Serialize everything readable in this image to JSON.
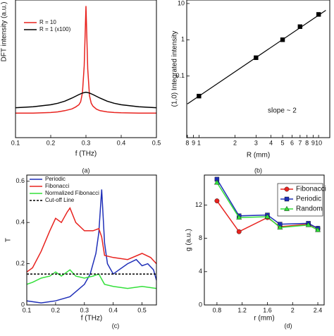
{
  "chart_data": [
    {
      "type": "line",
      "ylabel": "DFT intensity (a.u.)",
      "xlabel": "f (THz)",
      "label": "(a)",
      "xlim": [
        0.1,
        0.5
      ],
      "xticks": [
        0.1,
        0.2,
        0.3,
        0.4,
        0.5
      ],
      "ylim": [
        0,
        4.6
      ],
      "legend": "upper left",
      "series": [
        {
          "name": "R = 10",
          "color": "#e8231f",
          "x": [
            0.1,
            0.15,
            0.2,
            0.22,
            0.24,
            0.26,
            0.27,
            0.28,
            0.285,
            0.29,
            0.295,
            0.3,
            0.305,
            0.31,
            0.315,
            0.32,
            0.33,
            0.34,
            0.36,
            0.38,
            0.4,
            0.45,
            0.5
          ],
          "values": [
            0.82,
            0.82,
            0.84,
            0.86,
            0.9,
            0.96,
            1.02,
            1.1,
            1.2,
            1.5,
            2.4,
            4.4,
            2.3,
            1.4,
            1.15,
            1.05,
            0.95,
            0.9,
            0.86,
            0.84,
            0.83,
            0.82,
            0.82
          ]
        },
        {
          "name": "R = 1 (x100)",
          "color": "#000000",
          "x": [
            0.1,
            0.15,
            0.2,
            0.22,
            0.24,
            0.26,
            0.27,
            0.28,
            0.29,
            0.3,
            0.31,
            0.32,
            0.33,
            0.34,
            0.36,
            0.38,
            0.4,
            0.45,
            0.5
          ],
          "values": [
            1.0,
            1.03,
            1.1,
            1.15,
            1.22,
            1.32,
            1.38,
            1.44,
            1.49,
            1.52,
            1.49,
            1.44,
            1.38,
            1.32,
            1.22,
            1.15,
            1.1,
            1.03,
            1.0
          ]
        }
      ]
    },
    {
      "type": "scatter",
      "ylabel": "(1,0) Integrated intensity",
      "xlabel": "R (mm)",
      "label": "(b)",
      "annotation": "slope ~ 2",
      "xscale": "log",
      "yscale": "log",
      "xlim": [
        0.79,
        12.4
      ],
      "ylim": [
        0.002,
        12.5
      ],
      "xticks": [
        {
          "value": 0.8,
          "label": "8"
        },
        {
          "value": 0.9,
          "label": "9"
        },
        1,
        2,
        3,
        4,
        5,
        6,
        7,
        {
          "value": 8,
          "label": "8"
        },
        {
          "value": 9,
          "label": "9"
        },
        10
      ],
      "yticks": [
        0.1,
        1,
        10
      ],
      "series": [
        {
          "color": "#000000",
          "marker": "none",
          "x": [
            0.8,
            11.5
          ],
          "values": [
            0.017,
            6.5
          ]
        },
        {
          "color": "#000000",
          "marker": "square",
          "line": false,
          "x": [
            1,
            3,
            5,
            7,
            10
          ],
          "values": [
            0.028,
            0.32,
            1.0,
            2.3,
            5.0
          ]
        }
      ]
    },
    {
      "type": "line",
      "ylabel": "T",
      "xlabel": "f (THz)",
      "label": "(c)",
      "xlim": [
        0.1,
        0.55
      ],
      "xticks": [
        0.1,
        0.2,
        0.3,
        0.4,
        0.5
      ],
      "ylim": [
        0,
        0.63
      ],
      "yticks": [
        0,
        0.2,
        0.4,
        0.6
      ],
      "legend": "upper left",
      "series": [
        {
          "name": "Periodic",
          "color": "#1f2fb8",
          "x": [
            0.1,
            0.15,
            0.2,
            0.25,
            0.3,
            0.32,
            0.34,
            0.35,
            0.36,
            0.37,
            0.38,
            0.4,
            0.42,
            0.45,
            0.48,
            0.5,
            0.52,
            0.54,
            0.55
          ],
          "values": [
            0.02,
            0.01,
            0.02,
            0.04,
            0.1,
            0.15,
            0.25,
            0.35,
            0.56,
            0.3,
            0.2,
            0.15,
            0.17,
            0.2,
            0.22,
            0.19,
            0.2,
            0.17,
            0.12
          ]
        },
        {
          "name": "Fibonacci",
          "color": "#e8231f",
          "x": [
            0.1,
            0.12,
            0.15,
            0.18,
            0.2,
            0.22,
            0.24,
            0.25,
            0.27,
            0.3,
            0.33,
            0.35,
            0.36,
            0.37,
            0.4,
            0.45,
            0.5,
            0.53,
            0.55
          ],
          "values": [
            0.16,
            0.18,
            0.26,
            0.36,
            0.42,
            0.4,
            0.45,
            0.47,
            0.4,
            0.36,
            0.36,
            0.37,
            0.33,
            0.24,
            0.23,
            0.22,
            0.25,
            0.23,
            0.2
          ]
        },
        {
          "name": "Normalized Fibonacci",
          "color": "#33e03a",
          "x": [
            0.1,
            0.12,
            0.15,
            0.18,
            0.2,
            0.22,
            0.25,
            0.27,
            0.3,
            0.33,
            0.35,
            0.37,
            0.4,
            0.45,
            0.5,
            0.55
          ],
          "values": [
            0.1,
            0.11,
            0.13,
            0.14,
            0.16,
            0.14,
            0.17,
            0.14,
            0.13,
            0.14,
            0.15,
            0.1,
            0.09,
            0.08,
            0.09,
            0.08
          ]
        },
        {
          "name": "Cut-off Line",
          "color": "#000000",
          "dash": true,
          "x": [
            0.1,
            0.55
          ],
          "values": [
            0.15,
            0.15
          ]
        }
      ]
    },
    {
      "type": "line",
      "ylabel": "g (a.u.)",
      "xlabel": "r (mm)",
      "label": "(d)",
      "xlim": [
        0.6,
        2.5
      ],
      "xticks": [
        0.8,
        1.2,
        1.6,
        2,
        2.4
      ],
      "ylim": [
        0,
        15.6
      ],
      "yticks": [
        0,
        4,
        8,
        12
      ],
      "legend": "upper right",
      "x": [
        0.8,
        1.15,
        1.6,
        1.8,
        2.25,
        2.4
      ],
      "series": [
        {
          "name": "Fibonacci",
          "color": "#e8231f",
          "marker": "circle",
          "values": [
            12.5,
            8.8,
            10.5,
            9.4,
            9.7,
            9.2
          ]
        },
        {
          "name": "Periodic",
          "color": "#1f2fb8",
          "marker": "square",
          "values": [
            15.1,
            10.7,
            10.8,
            9.7,
            9.8,
            9.2
          ]
        },
        {
          "name": "Random",
          "color": "#33e03a",
          "marker": "triangle",
          "values": [
            14.7,
            10.5,
            10.6,
            9.3,
            9.6,
            9.0
          ]
        }
      ]
    }
  ]
}
